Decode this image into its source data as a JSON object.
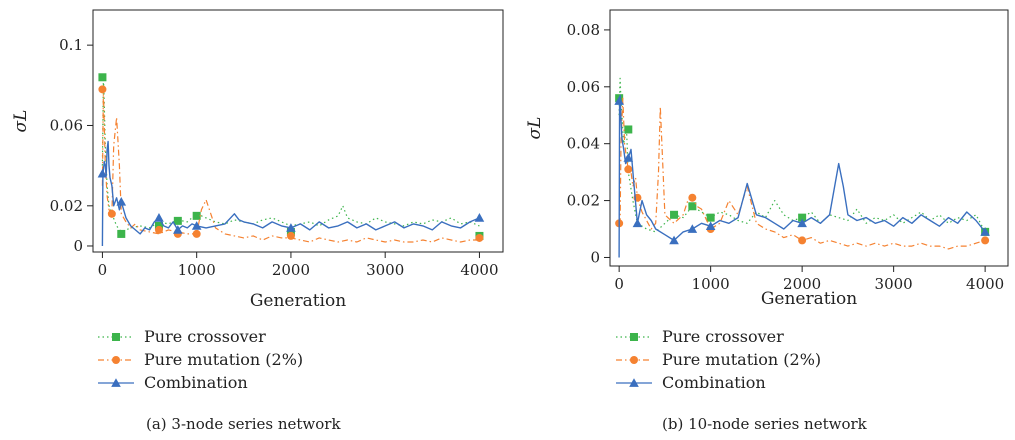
{
  "series_styles": [
    {
      "key": "crossover",
      "color": "#3cb44b",
      "marker": "square",
      "dash": "1.5,3"
    },
    {
      "key": "mutation",
      "color": "#f58231",
      "marker": "circle",
      "dash": "6,3,1.5,3"
    },
    {
      "key": "combination",
      "color": "#3a6fbf",
      "marker": "triangle",
      "dash": ""
    }
  ],
  "chart_data": [
    {
      "type": "line",
      "caption": "(a)  3-node series network",
      "xlabel": "Generation",
      "ylabel": "σL",
      "xlim": [
        -100,
        4250
      ],
      "ylim": [
        -0.003,
        0.1175
      ],
      "xticks": [
        0,
        1000,
        2000,
        3000,
        4000
      ],
      "yticks": [
        0,
        0.02,
        0.06,
        0.1
      ],
      "ytick_labels": [
        "0",
        "0.02",
        "0.06",
        "0.1"
      ],
      "grid": false,
      "legend_position": "below-left",
      "series": [
        {
          "name": "Pure crossover",
          "x": [
            0,
            10,
            20,
            30,
            50,
            70,
            100,
            150,
            200,
            300,
            400,
            500,
            600,
            700,
            800,
            900,
            1000,
            1100,
            1200,
            1300,
            1400,
            1500,
            1600,
            1700,
            1800,
            1900,
            2000,
            2100,
            2200,
            2300,
            2400,
            2500,
            2550,
            2600,
            2700,
            2800,
            2900,
            3000,
            3100,
            3200,
            3300,
            3400,
            3500,
            3600,
            3700,
            3800,
            3900,
            4000
          ],
          "y": [
            0.04,
            0.085,
            0.07,
            0.05,
            0.03,
            0.02,
            0.016,
            0.01,
            0.007,
            0.009,
            0.01,
            0.009,
            0.012,
            0.011,
            0.013,
            0.012,
            0.016,
            0.014,
            0.012,
            0.011,
            0.013,
            0.012,
            0.011,
            0.013,
            0.014,
            0.012,
            0.01,
            0.011,
            0.012,
            0.01,
            0.013,
            0.015,
            0.02,
            0.014,
            0.012,
            0.011,
            0.014,
            0.012,
            0.011,
            0.01,
            0.012,
            0.011,
            0.013,
            0.012,
            0.014,
            0.011,
            0.012,
            0.01
          ],
          "markers_x": [
            0,
            200,
            600,
            800,
            1000,
            2000,
            4000
          ],
          "markers_y": [
            0.084,
            0.006,
            0.01,
            0.0125,
            0.015,
            0.007,
            0.005
          ]
        },
        {
          "name": "Pure mutation (2%)",
          "x": [
            0,
            10,
            20,
            30,
            50,
            70,
            100,
            120,
            150,
            180,
            200,
            250,
            300,
            350,
            400,
            500,
            600,
            700,
            800,
            900,
            1000,
            1050,
            1100,
            1200,
            1300,
            1400,
            1500,
            1600,
            1700,
            1800,
            1900,
            2000,
            2100,
            2200,
            2300,
            2400,
            2500,
            2600,
            2700,
            2800,
            2900,
            3000,
            3100,
            3200,
            3300,
            3400,
            3500,
            3600,
            3700,
            3800,
            3900,
            4000
          ],
          "y": [
            0.03,
            0.078,
            0.06,
            0.04,
            0.025,
            0.018,
            0.016,
            0.05,
            0.064,
            0.04,
            0.016,
            0.012,
            0.009,
            0.011,
            0.008,
            0.007,
            0.006,
            0.008,
            0.007,
            0.006,
            0.006,
            0.018,
            0.023,
            0.009,
            0.006,
            0.005,
            0.004,
            0.005,
            0.003,
            0.005,
            0.004,
            0.004,
            0.003,
            0.002,
            0.004,
            0.003,
            0.002,
            0.003,
            0.002,
            0.004,
            0.003,
            0.002,
            0.003,
            0.002,
            0.002,
            0.003,
            0.002,
            0.004,
            0.003,
            0.002,
            0.003,
            0.003
          ],
          "markers_x": [
            0,
            100,
            600,
            800,
            1000,
            2000,
            4000
          ],
          "markers_y": [
            0.078,
            0.016,
            0.008,
            0.006,
            0.006,
            0.005,
            0.004
          ]
        },
        {
          "name": "Combination",
          "x": [
            0,
            5,
            10,
            20,
            30,
            40,
            50,
            60,
            70,
            80,
            100,
            120,
            150,
            180,
            200,
            250,
            300,
            350,
            400,
            450,
            500,
            550,
            600,
            650,
            700,
            750,
            800,
            850,
            900,
            950,
            1000,
            1100,
            1200,
            1300,
            1400,
            1450,
            1500,
            1600,
            1700,
            1800,
            1900,
            2000,
            2100,
            2200,
            2300,
            2400,
            2500,
            2600,
            2700,
            2800,
            2900,
            3000,
            3100,
            3200,
            3300,
            3400,
            3500,
            3600,
            3700,
            3800,
            3900,
            4000
          ],
          "y": [
            0.0,
            0.036,
            0.038,
            0.042,
            0.04,
            0.035,
            0.048,
            0.052,
            0.04,
            0.034,
            0.03,
            0.02,
            0.024,
            0.018,
            0.022,
            0.014,
            0.01,
            0.008,
            0.006,
            0.009,
            0.008,
            0.012,
            0.014,
            0.01,
            0.009,
            0.012,
            0.008,
            0.01,
            0.009,
            0.011,
            0.01,
            0.009,
            0.01,
            0.011,
            0.016,
            0.013,
            0.012,
            0.011,
            0.009,
            0.012,
            0.01,
            0.009,
            0.011,
            0.008,
            0.012,
            0.009,
            0.01,
            0.012,
            0.009,
            0.011,
            0.008,
            0.01,
            0.012,
            0.009,
            0.011,
            0.01,
            0.008,
            0.012,
            0.01,
            0.009,
            0.012,
            0.014
          ],
          "markers_x": [
            0,
            200,
            600,
            800,
            1000,
            2000,
            4000
          ],
          "markers_y": [
            0.036,
            0.022,
            0.014,
            0.008,
            0.01,
            0.009,
            0.014
          ]
        }
      ]
    },
    {
      "type": "line",
      "caption": "(b)  10-node series network",
      "xlabel": "Generation",
      "ylabel": "σL",
      "xlim": [
        -100,
        4250
      ],
      "ylim": [
        -0.003,
        0.087
      ],
      "xticks": [
        0,
        1000,
        2000,
        3000,
        4000
      ],
      "yticks": [
        0,
        0.02,
        0.04,
        0.06,
        0.08
      ],
      "ytick_labels": [
        "0",
        "0.02",
        "0.04",
        "0.06",
        "0.08"
      ],
      "grid": false,
      "legend_position": "below-left",
      "series": [
        {
          "name": "Pure crossover",
          "x": [
            0,
            10,
            20,
            30,
            50,
            80,
            100,
            150,
            200,
            300,
            400,
            500,
            600,
            700,
            800,
            900,
            1000,
            1100,
            1200,
            1300,
            1400,
            1500,
            1600,
            1700,
            1800,
            1900,
            2000,
            2100,
            2200,
            2300,
            2400,
            2500,
            2600,
            2700,
            2800,
            2900,
            3000,
            3100,
            3200,
            3300,
            3400,
            3500,
            3600,
            3700,
            3800,
            3900,
            4000
          ],
          "y": [
            0.05,
            0.063,
            0.055,
            0.05,
            0.04,
            0.045,
            0.03,
            0.02,
            0.012,
            0.01,
            0.009,
            0.012,
            0.015,
            0.014,
            0.018,
            0.016,
            0.014,
            0.016,
            0.015,
            0.013,
            0.012,
            0.016,
            0.014,
            0.02,
            0.015,
            0.013,
            0.014,
            0.016,
            0.012,
            0.015,
            0.014,
            0.013,
            0.017,
            0.012,
            0.014,
            0.013,
            0.015,
            0.012,
            0.014,
            0.016,
            0.013,
            0.015,
            0.012,
            0.014,
            0.013,
            0.015,
            0.009
          ],
          "markers_x": [
            0,
            100,
            600,
            800,
            1000,
            2000,
            4000
          ],
          "markers_y": [
            0.056,
            0.045,
            0.015,
            0.018,
            0.014,
            0.014,
            0.009
          ]
        },
        {
          "name": "Pure mutation (2%)",
          "x": [
            0,
            10,
            20,
            40,
            60,
            80,
            100,
            130,
            150,
            180,
            200,
            250,
            300,
            350,
            400,
            430,
            450,
            480,
            500,
            600,
            700,
            750,
            800,
            850,
            900,
            1000,
            1100,
            1200,
            1300,
            1400,
            1500,
            1600,
            1700,
            1800,
            1900,
            2000,
            2100,
            2200,
            2300,
            2400,
            2500,
            2600,
            2700,
            2800,
            2900,
            3000,
            3100,
            3200,
            3300,
            3400,
            3500,
            3600,
            3700,
            3800,
            3900,
            4000
          ],
          "y": [
            0.012,
            0.012,
            0.04,
            0.056,
            0.04,
            0.035,
            0.031,
            0.03,
            0.025,
            0.028,
            0.021,
            0.016,
            0.013,
            0.01,
            0.012,
            0.03,
            0.053,
            0.03,
            0.015,
            0.012,
            0.015,
            0.02,
            0.021,
            0.018,
            0.017,
            0.01,
            0.012,
            0.02,
            0.015,
            0.025,
            0.012,
            0.01,
            0.009,
            0.007,
            0.008,
            0.006,
            0.007,
            0.005,
            0.006,
            0.005,
            0.004,
            0.005,
            0.004,
            0.005,
            0.004,
            0.005,
            0.004,
            0.004,
            0.005,
            0.004,
            0.004,
            0.003,
            0.004,
            0.004,
            0.005,
            0.006
          ],
          "markers_x": [
            0,
            100,
            200,
            800,
            1000,
            2000,
            4000
          ],
          "markers_y": [
            0.012,
            0.031,
            0.021,
            0.021,
            0.01,
            0.006,
            0.006
          ]
        },
        {
          "name": "Combination",
          "x": [
            0,
            5,
            10,
            20,
            30,
            50,
            70,
            100,
            130,
            150,
            200,
            250,
            300,
            350,
            400,
            500,
            600,
            700,
            800,
            900,
            1000,
            1100,
            1200,
            1300,
            1400,
            1500,
            1600,
            1700,
            1800,
            1900,
            2000,
            2100,
            2200,
            2300,
            2400,
            2450,
            2500,
            2600,
            2700,
            2800,
            2900,
            3000,
            3100,
            3200,
            3300,
            3400,
            3500,
            3600,
            3700,
            3800,
            3900,
            4000
          ],
          "y": [
            0.0,
            0.055,
            0.057,
            0.048,
            0.042,
            0.038,
            0.033,
            0.035,
            0.038,
            0.03,
            0.012,
            0.02,
            0.015,
            0.013,
            0.01,
            0.008,
            0.006,
            0.009,
            0.01,
            0.012,
            0.011,
            0.013,
            0.012,
            0.014,
            0.026,
            0.015,
            0.014,
            0.012,
            0.01,
            0.013,
            0.012,
            0.014,
            0.012,
            0.015,
            0.033,
            0.025,
            0.015,
            0.013,
            0.014,
            0.012,
            0.013,
            0.011,
            0.014,
            0.012,
            0.015,
            0.013,
            0.011,
            0.014,
            0.012,
            0.016,
            0.013,
            0.009
          ],
          "markers_x": [
            0,
            100,
            200,
            600,
            800,
            1000,
            2000,
            4000
          ],
          "markers_y": [
            0.055,
            0.035,
            0.012,
            0.006,
            0.01,
            0.011,
            0.012,
            0.009
          ]
        }
      ]
    }
  ]
}
